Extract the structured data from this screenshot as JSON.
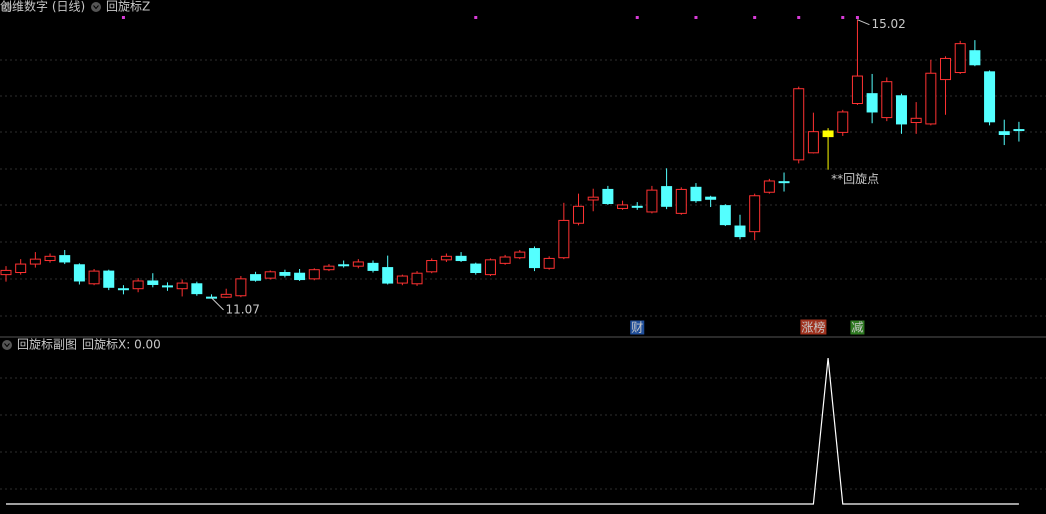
{
  "chart_data": [
    {
      "type": "candlestick",
      "title": "创维数字 (日线)",
      "indicator": "回旋标Z",
      "open": [
        11.4,
        11.43,
        11.55,
        11.6,
        11.67,
        11.54,
        11.27,
        11.45,
        11.2,
        11.2,
        11.31,
        11.24,
        11.2,
        11.27,
        11.08,
        11.08,
        11.1,
        11.4,
        11.35,
        11.43,
        11.42,
        11.34,
        11.47,
        11.54,
        11.52,
        11.56,
        11.5,
        11.28,
        11.27,
        11.44,
        11.61,
        11.66,
        11.55,
        11.4,
        11.56,
        11.64,
        11.77,
        11.49,
        11.64,
        12.13,
        12.46,
        12.61,
        12.34,
        12.37,
        12.29,
        12.65,
        12.27,
        12.64,
        12.5,
        12.38,
        12.09,
        12.01,
        12.57,
        12.72,
        13.03,
        13.13,
        13.44,
        13.42,
        13.83,
        13.97,
        13.63,
        13.94,
        13.56,
        13.54,
        14.17,
        14.27,
        14.58,
        14.28,
        13.43,
        13.46
      ],
      "high": [
        11.52,
        11.62,
        11.72,
        11.7,
        11.75,
        11.56,
        11.48,
        11.47,
        11.25,
        11.35,
        11.42,
        11.29,
        11.33,
        11.3,
        11.12,
        11.2,
        11.38,
        11.44,
        11.46,
        11.47,
        11.48,
        11.49,
        11.55,
        11.6,
        11.62,
        11.6,
        11.67,
        11.4,
        11.45,
        11.63,
        11.7,
        11.72,
        11.57,
        11.63,
        11.68,
        11.75,
        11.8,
        11.66,
        12.42,
        12.55,
        12.62,
        12.66,
        12.45,
        12.43,
        12.66,
        12.91,
        12.64,
        12.7,
        12.52,
        12.4,
        12.25,
        12.55,
        12.76,
        12.85,
        14.07,
        13.7,
        13.48,
        13.74,
        15.02,
        14.25,
        14.2,
        13.97,
        13.85,
        14.45,
        14.5,
        14.72,
        14.73,
        14.3,
        13.6,
        13.57
      ],
      "low": [
        11.3,
        11.4,
        11.5,
        11.57,
        11.55,
        11.26,
        11.25,
        11.18,
        11.12,
        11.15,
        11.22,
        11.17,
        11.09,
        11.1,
        11.07,
        11.07,
        11.08,
        11.3,
        11.33,
        11.36,
        11.31,
        11.32,
        11.45,
        11.5,
        11.49,
        11.43,
        11.26,
        11.25,
        11.24,
        11.42,
        11.58,
        11.58,
        11.4,
        11.38,
        11.54,
        11.62,
        11.45,
        11.47,
        11.62,
        12.1,
        12.3,
        12.39,
        12.32,
        12.32,
        12.27,
        12.33,
        12.25,
        12.42,
        12.36,
        12.09,
        11.9,
        11.89,
        12.55,
        12.58,
        12.98,
        13.12,
        12.89,
        13.37,
        13.81,
        13.55,
        13.58,
        13.4,
        13.4,
        13.52,
        13.67,
        14.25,
        14.36,
        13.52,
        13.24,
        13.29
      ],
      "close": [
        11.46,
        11.55,
        11.62,
        11.66,
        11.58,
        11.31,
        11.45,
        11.22,
        11.2,
        11.31,
        11.26,
        11.24,
        11.28,
        11.13,
        11.08,
        11.12,
        11.34,
        11.32,
        11.44,
        11.39,
        11.33,
        11.47,
        11.52,
        11.54,
        11.58,
        11.46,
        11.28,
        11.38,
        11.42,
        11.6,
        11.66,
        11.6,
        11.43,
        11.61,
        11.65,
        11.72,
        11.5,
        11.63,
        12.17,
        12.37,
        12.5,
        12.41,
        12.39,
        12.37,
        12.6,
        12.37,
        12.61,
        12.45,
        12.47,
        12.11,
        11.94,
        12.52,
        12.73,
        12.72,
        14.04,
        13.43,
        13.36,
        13.71,
        14.22,
        13.71,
        14.14,
        13.54,
        13.62,
        14.26,
        14.47,
        14.68,
        14.38,
        13.57,
        13.39,
        13.46
      ],
      "up_color": "#ff3232",
      "down_color": "#54ffff",
      "signal_color": "#ffff00",
      "ylim": [
        10.5,
        15.3
      ],
      "dot_indices": [
        8,
        32,
        43,
        47,
        51,
        54,
        57,
        58
      ],
      "dot_color": "#d83cd8",
      "signal_annotation": "**回旋点",
      "events": [
        {
          "index": 43,
          "label": "财",
          "color": "#1f4e9a"
        },
        {
          "index": 55,
          "label": "涨榜",
          "color": "#a0321e"
        },
        {
          "index": 58,
          "label": "减",
          "color": "#2f7a22"
        }
      ]
    },
    {
      "type": "line",
      "title": "回旋标副图",
      "legend": "回旋标X: 0.00",
      "color": "#ffffff",
      "ylim": [
        0,
        1
      ],
      "values": [
        0,
        0,
        0,
        0,
        0,
        0,
        0,
        0,
        0,
        0,
        0,
        0,
        0,
        0,
        0,
        0,
        0,
        0,
        0,
        0,
        0,
        0,
        0,
        0,
        0,
        0,
        0,
        0,
        0,
        0,
        0,
        0,
        0,
        0,
        0,
        0,
        0,
        0,
        0,
        0,
        0,
        0,
        0,
        0,
        0,
        0,
        0,
        0,
        0,
        0,
        0,
        0,
        0,
        0,
        0,
        0,
        1,
        0,
        0,
        0,
        0,
        0,
        0,
        0,
        0,
        0,
        0,
        0,
        0,
        0
      ]
    }
  ]
}
